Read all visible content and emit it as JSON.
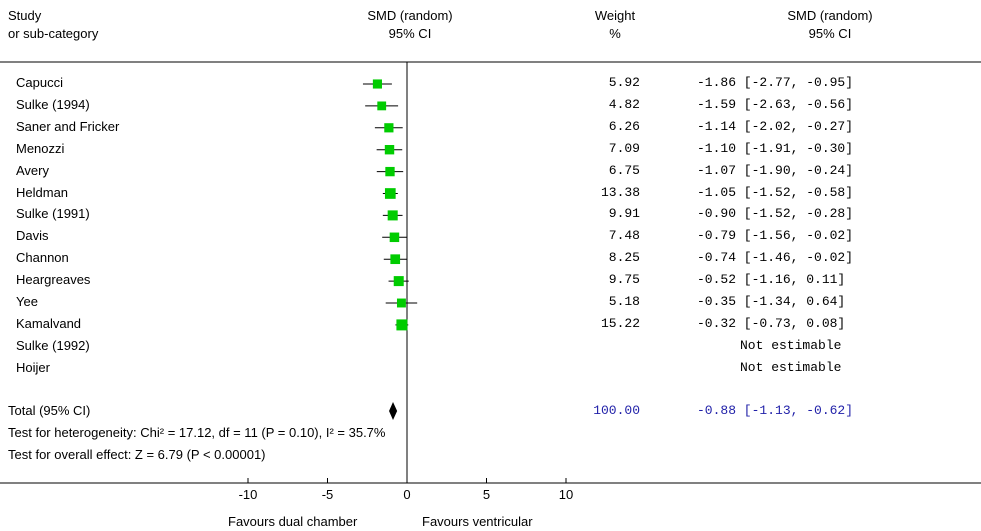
{
  "header": {
    "study_label_1": "Study",
    "study_label_2": "or sub-category",
    "smd_plot_label_1": "SMD (random)",
    "smd_plot_label_2": "95% CI",
    "weight_label_1": "Weight",
    "weight_label_2": "%",
    "smd_text_label_1": "SMD (random)",
    "smd_text_label_2": "95% CI"
  },
  "studies": [
    {
      "name": "Capucci",
      "weight": "5.92",
      "ci_text": "-1.86 [-2.77, -0.95]"
    },
    {
      "name": "Sulke (1994)",
      "weight": "4.82",
      "ci_text": "-1.59 [-2.63, -0.56]"
    },
    {
      "name": "Saner and Fricker",
      "weight": "6.26",
      "ci_text": "-1.14 [-2.02, -0.27]"
    },
    {
      "name": "Menozzi",
      "weight": "7.09",
      "ci_text": "-1.10 [-1.91, -0.30]"
    },
    {
      "name": "Avery",
      "weight": "6.75",
      "ci_text": "-1.07 [-1.90, -0.24]"
    },
    {
      "name": "Heldman",
      "weight": "13.38",
      "ci_text": "-1.05 [-1.52, -0.58]"
    },
    {
      "name": "Sulke (1991)",
      "weight": "9.91",
      "ci_text": "-0.90 [-1.52, -0.28]"
    },
    {
      "name": "Davis",
      "weight": "7.48",
      "ci_text": "-0.79 [-1.56, -0.02]"
    },
    {
      "name": "Channon",
      "weight": "8.25",
      "ci_text": "-0.74 [-1.46, -0.02]"
    },
    {
      "name": "Heargreaves",
      "weight": "9.75",
      "ci_text": "-0.52 [-1.16, 0.11]"
    },
    {
      "name": "Yee",
      "weight": "5.18",
      "ci_text": "-0.35 [-1.34, 0.64]"
    },
    {
      "name": "Kamalvand",
      "weight": "15.22",
      "ci_text": "-0.32 [-0.73, 0.08]"
    },
    {
      "name": "Sulke (1992)",
      "weight": "",
      "ci_text": "Not estimable"
    },
    {
      "name": "Hoijer",
      "weight": "",
      "ci_text": "Not estimable"
    }
  ],
  "total": {
    "label": "Total (95% CI)",
    "weight": "100.00",
    "ci_text": "-0.88 [-1.13, -0.62]",
    "heterogeneity": "Test for heterogeneity: Chi² = 17.12, df = 11 (P = 0.10), I² = 35.7%",
    "overall_effect": "Test for overall effect: Z = 6.79 (P < 0.00001)"
  },
  "axis": {
    "favours_left": "Favours dual chamber",
    "favours_right": "Favours ventricular"
  },
  "colors": {
    "square": "#00cc00",
    "total_text": "#1f1fa8"
  },
  "chart_data": {
    "type": "forest",
    "xlim": [
      -10,
      10
    ],
    "ticks": [
      -10,
      -5,
      0,
      5,
      10
    ],
    "tick_labels": [
      "-10",
      "-5",
      "0",
      "5",
      "10"
    ],
    "points": [
      {
        "study": "Capucci",
        "smd": -1.86,
        "lo": -2.77,
        "hi": -0.95,
        "weight": 5.92
      },
      {
        "study": "Sulke (1994)",
        "smd": -1.59,
        "lo": -2.63,
        "hi": -0.56,
        "weight": 4.82
      },
      {
        "study": "Saner and Fricker",
        "smd": -1.14,
        "lo": -2.02,
        "hi": -0.27,
        "weight": 6.26
      },
      {
        "study": "Menozzi",
        "smd": -1.1,
        "lo": -1.91,
        "hi": -0.3,
        "weight": 7.09
      },
      {
        "study": "Avery",
        "smd": -1.07,
        "lo": -1.9,
        "hi": -0.24,
        "weight": 6.75
      },
      {
        "study": "Heldman",
        "smd": -1.05,
        "lo": -1.52,
        "hi": -0.58,
        "weight": 13.38
      },
      {
        "study": "Sulke (1991)",
        "smd": -0.9,
        "lo": -1.52,
        "hi": -0.28,
        "weight": 9.91
      },
      {
        "study": "Davis",
        "smd": -0.79,
        "lo": -1.56,
        "hi": -0.02,
        "weight": 7.48
      },
      {
        "study": "Channon",
        "smd": -0.74,
        "lo": -1.46,
        "hi": -0.02,
        "weight": 8.25
      },
      {
        "study": "Heargreaves",
        "smd": -0.52,
        "lo": -1.16,
        "hi": 0.11,
        "weight": 9.75
      },
      {
        "study": "Yee",
        "smd": -0.35,
        "lo": -1.34,
        "hi": 0.64,
        "weight": 5.18
      },
      {
        "study": "Kamalvand",
        "smd": -0.32,
        "lo": -0.73,
        "hi": 0.08,
        "weight": 15.22
      }
    ],
    "total": {
      "smd": -0.88,
      "lo": -1.13,
      "hi": -0.62
    }
  }
}
